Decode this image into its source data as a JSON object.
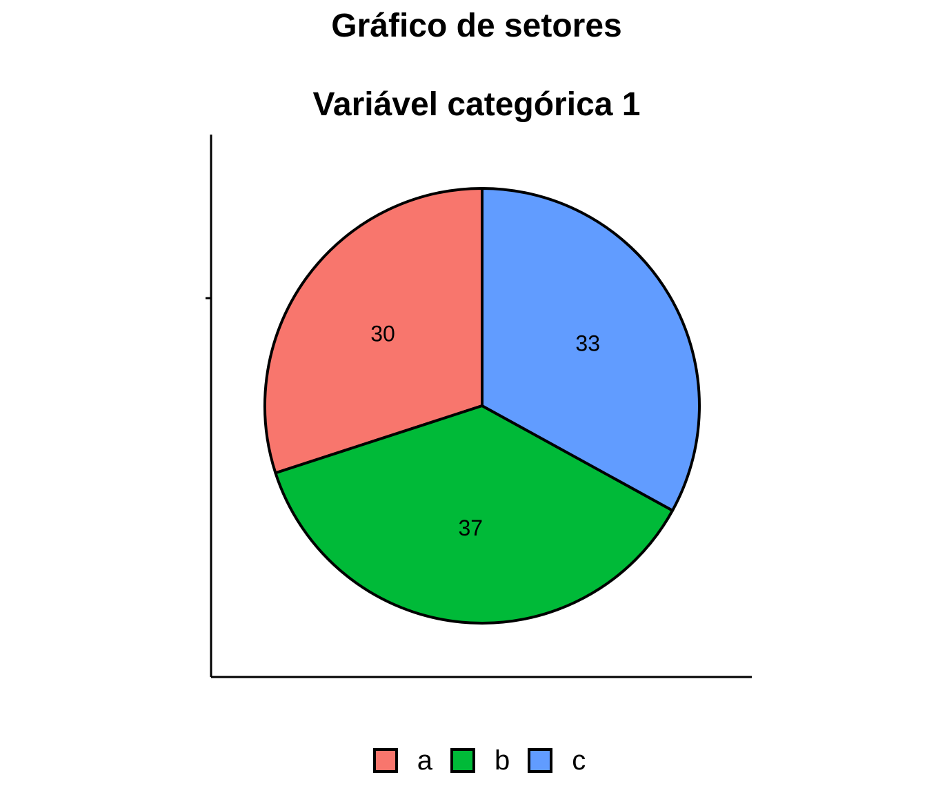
{
  "chart_data": {
    "type": "pie",
    "title": "Gráfico de setores",
    "subtitle": "Variável categórica 1",
    "categories": [
      "a",
      "b",
      "c"
    ],
    "values": [
      30,
      37,
      33
    ],
    "colors": [
      "#F8766D",
      "#00BA38",
      "#619CFF"
    ],
    "labels": [
      "30",
      "37",
      "33"
    ],
    "legend": {
      "position": "bottom",
      "entries": [
        "a",
        "b",
        "c"
      ]
    },
    "start_angle": "12 o'clock",
    "direction": "counter-clockwise"
  }
}
